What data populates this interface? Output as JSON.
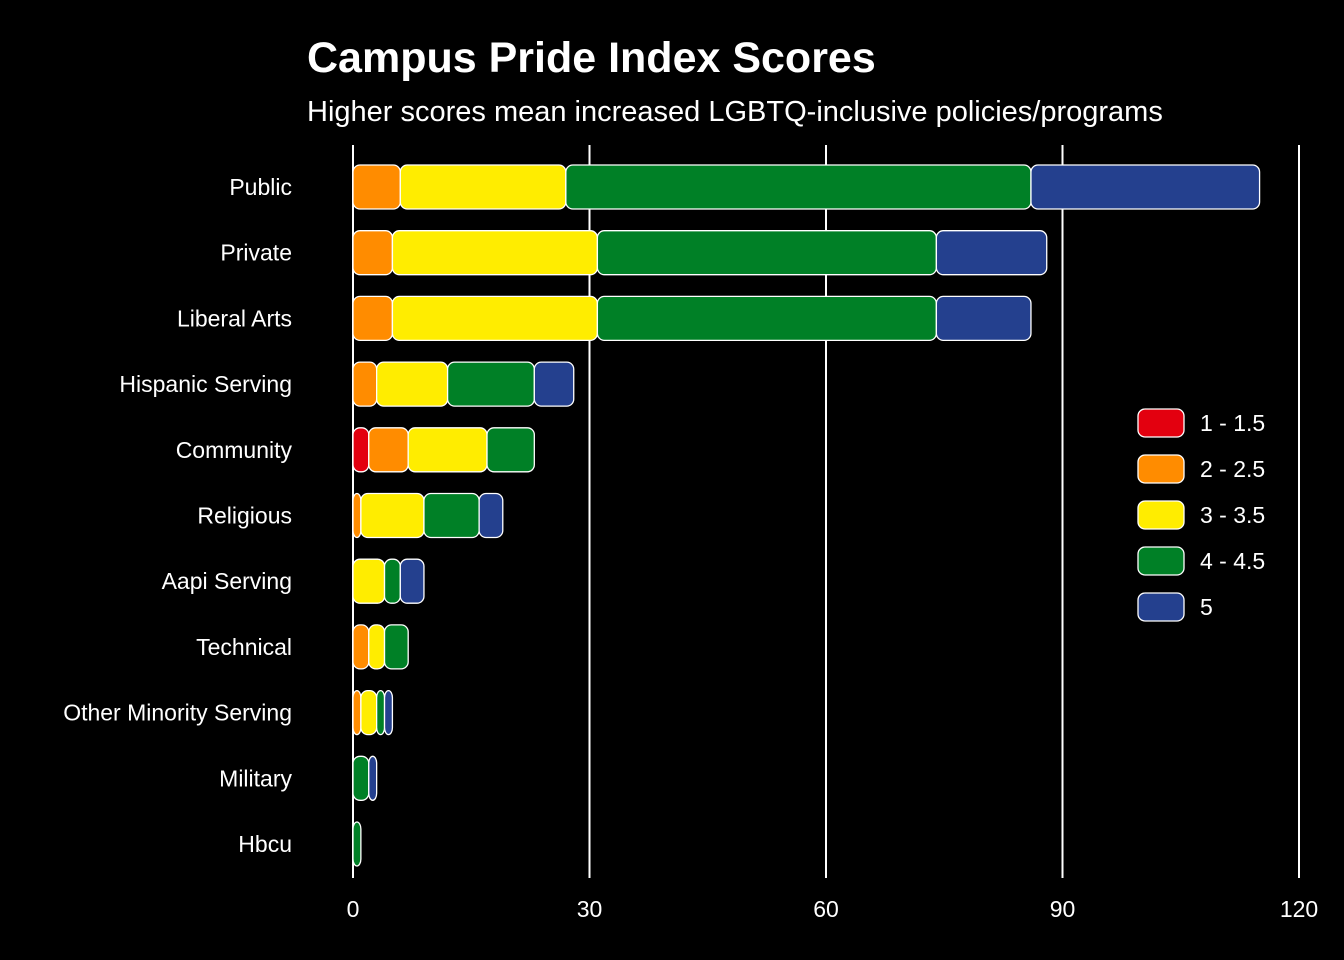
{
  "chart_data": {
    "type": "bar",
    "orientation": "horizontal",
    "stacked": true,
    "title": "Campus Pride Index Scores",
    "subtitle": "Higher scores mean increased LGBTQ-inclusive policies/programs",
    "xlabel": "",
    "ylabel": "",
    "xlim": [
      0,
      120
    ],
    "xticks": [
      0,
      30,
      60,
      90,
      120
    ],
    "grid": "vertical",
    "legend_position": "right",
    "categories": [
      "Public",
      "Private",
      "Liberal Arts",
      "Hispanic Serving",
      "Community",
      "Religious",
      "Aapi Serving",
      "Technical",
      "Other Minority Serving",
      "Military",
      "Hbcu"
    ],
    "series": [
      {
        "name": "1 - 1.5",
        "color": "#E3000F",
        "values": [
          0,
          0,
          0,
          0,
          2,
          0,
          0,
          0,
          0,
          0,
          0
        ]
      },
      {
        "name": "2 - 2.5",
        "color": "#FF8C00",
        "values": [
          6,
          5,
          5,
          3,
          5,
          1,
          0,
          2,
          1,
          0,
          0
        ]
      },
      {
        "name": "3 - 3.5",
        "color": "#FFED00",
        "values": [
          21,
          26,
          26,
          9,
          10,
          8,
          4,
          2,
          2,
          0,
          0
        ]
      },
      {
        "name": "4 - 4.5",
        "color": "#008026",
        "values": [
          59,
          43,
          43,
          11,
          6,
          7,
          2,
          3,
          1,
          2,
          1
        ]
      },
      {
        "name": "5",
        "color": "#24408E",
        "values": [
          29,
          14,
          12,
          5,
          0,
          3,
          3,
          0,
          1,
          1,
          0
        ]
      }
    ]
  }
}
